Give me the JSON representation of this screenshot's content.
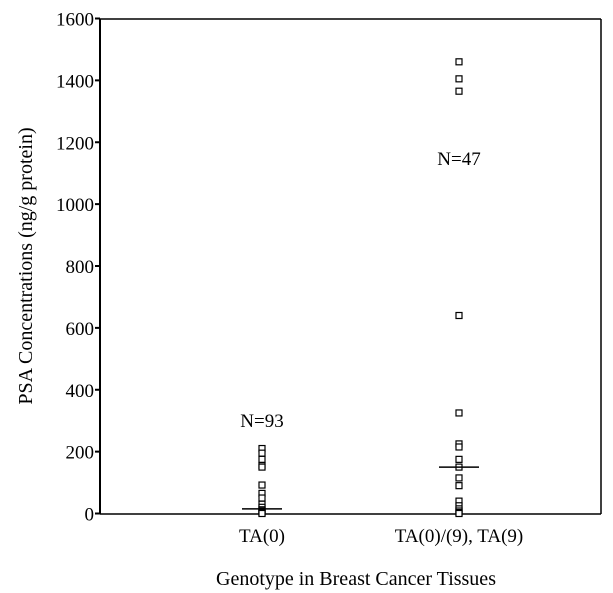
{
  "chart_data": {
    "type": "scatter",
    "title": "",
    "xlabel": "Genotype in Breast Cancer Tissues",
    "ylabel": "PSA Concentrations (ng/g protein)",
    "ylim": [
      0,
      1600
    ],
    "yticks": [
      1600,
      1400,
      1200,
      1000,
      800,
      600,
      400,
      200,
      0
    ],
    "grid": false,
    "marker": "open-square",
    "categories": [
      "TA(0)",
      "TA(0)/(9), TA(9)"
    ],
    "groups": [
      {
        "label": "TA(0)",
        "annotation": "N=93",
        "median": 15,
        "values": [
          210,
          195,
          175,
          155,
          150,
          92,
          65,
          50,
          30,
          20,
          12,
          8,
          5,
          2,
          0
        ]
      },
      {
        "label": "TA(0)/(9), TA(9)",
        "annotation": "N=47",
        "median": 150,
        "values": [
          1460,
          1405,
          1365,
          640,
          325,
          225,
          215,
          175,
          150,
          115,
          90,
          40,
          25,
          15,
          8,
          3,
          0
        ]
      }
    ]
  }
}
